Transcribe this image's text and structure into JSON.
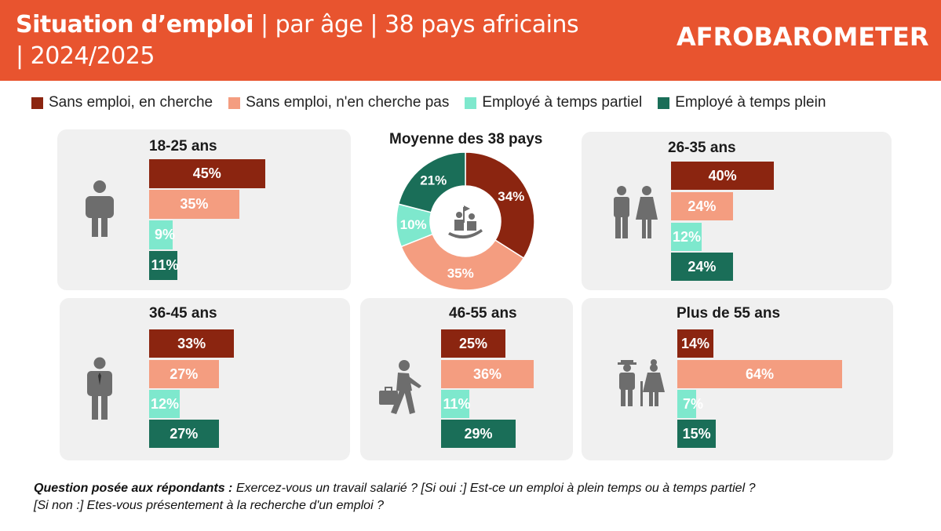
{
  "header": {
    "title_bold": "Situation d’emploi",
    "title_rest": " | par âge | 38 pays africains",
    "title_line2": "| 2024/2025",
    "logo": "AFROBAROMETER"
  },
  "colors": {
    "header_bg": "#e8542f",
    "sans_emploi_cherche": "#8b2510",
    "sans_emploi_ne_cherche_pas": "#f49d80",
    "temps_partiel": "#7ee8cd",
    "temps_plein": "#1a6e58"
  },
  "legend": [
    {
      "label": "Sans emploi, en cherche",
      "color": "#8b2510"
    },
    {
      "label": "Sans emploi, n'en cherche pas",
      "color": "#f49d80"
    },
    {
      "label": "Employé à temps partiel",
      "color": "#7ee8cd"
    },
    {
      "label": "Employé à temps plein",
      "color": "#1a6e58"
    }
  ],
  "chart_data": [
    {
      "type": "pie",
      "title": "Moyenne des 38 pays",
      "categories": [
        "Sans emploi, en cherche",
        "Sans emploi, n'en cherche pas",
        "Employé à temps partiel",
        "Employé à temps plein"
      ],
      "values": [
        34,
        35,
        10,
        21
      ],
      "labels": [
        "34%",
        "35%",
        "10%",
        "21%"
      ],
      "icon": "people-group-icon"
    },
    {
      "type": "bar",
      "title": "18-25 ans",
      "categories": [
        "Sans emploi, en cherche",
        "Sans emploi, n'en cherche pas",
        "Employé à temps partiel",
        "Employé à temps plein"
      ],
      "values": [
        45,
        35,
        9,
        11
      ],
      "labels": [
        "45%",
        "35%",
        "9%",
        "11%"
      ],
      "icon": "student-icon"
    },
    {
      "type": "bar",
      "title": "26-35 ans",
      "categories": [
        "Sans emploi, en cherche",
        "Sans emploi, n'en cherche pas",
        "Employé à temps partiel",
        "Employé à temps plein"
      ],
      "values": [
        40,
        24,
        12,
        24
      ],
      "labels": [
        "40%",
        "24%",
        "12%",
        "24%"
      ],
      "icon": "man-woman-icon"
    },
    {
      "type": "bar",
      "title": "36-45 ans",
      "categories": [
        "Sans emploi, en cherche",
        "Sans emploi, n'en cherche pas",
        "Employé à temps partiel",
        "Employé à temps plein"
      ],
      "values": [
        33,
        27,
        12,
        27
      ],
      "labels": [
        "33%",
        "27%",
        "12%",
        "27%"
      ],
      "icon": "businessman-icon"
    },
    {
      "type": "bar",
      "title": "46-55 ans",
      "categories": [
        "Sans emploi, en cherche",
        "Sans emploi, n'en cherche pas",
        "Employé à temps partiel",
        "Employé à temps plein"
      ],
      "values": [
        25,
        36,
        11,
        29
      ],
      "labels": [
        "25%",
        "36%",
        "11%",
        "29%"
      ],
      "icon": "walking-with-briefcase-icon"
    },
    {
      "type": "bar",
      "title": "Plus de 55 ans",
      "categories": [
        "Sans emploi, en cherche",
        "Sans emploi, n'en cherche pas",
        "Employé à temps partiel",
        "Employé à temps plein"
      ],
      "values": [
        14,
        64,
        7,
        15
      ],
      "labels": [
        "14%",
        "64%",
        "7%",
        "15%"
      ],
      "icon": "elderly-couple-icon"
    }
  ],
  "footnote": {
    "bold": "Question posée aux répondants :",
    "text": " Exercez-vous un travail salarié ? [Si oui :] Est-ce un emploi à plein temps ou à temps partiel ?",
    "line2": "[Si non :] Etes-vous présentement à la recherche d'un emploi ?"
  }
}
